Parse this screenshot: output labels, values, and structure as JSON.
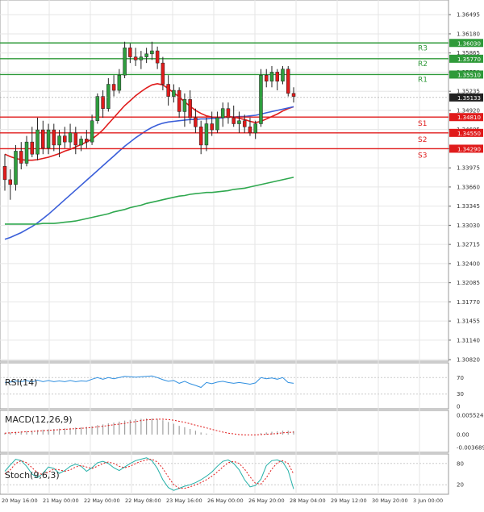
{
  "chart_data": [
    {
      "type": "candlestick",
      "panel": "price",
      "ylim": [
        1.3082,
        1.3671
      ],
      "y_ticks": [
        "1.36495",
        "1.36180",
        "1.35865",
        "1.35550",
        "1.35235",
        "1.34920",
        "1.34605",
        "1.34290",
        "1.33975",
        "1.33660",
        "1.33345",
        "1.33030",
        "1.32715",
        "1.32400",
        "1.32085",
        "1.31770",
        "1.31455",
        "1.31140",
        "1.30820"
      ],
      "x_labels": [
        "20 May 16:00",
        "21 May 00:00",
        "22 May 00:00",
        "22 May 08:00",
        "23 May 16:00",
        "26 May 00:00",
        "26 May 20:00",
        "28 May 04:00",
        "29 May 12:00",
        "30 May 20:00",
        "3 Jun 00:00"
      ],
      "candles": [
        [
          1.34,
          1.342,
          1.336,
          1.3378
        ],
        [
          1.3378,
          1.3395,
          1.3345,
          1.337
        ],
        [
          1.337,
          1.3435,
          1.336,
          1.3425
        ],
        [
          1.3425,
          1.344,
          1.3395,
          1.3405
        ],
        [
          1.3405,
          1.345,
          1.34,
          1.344
        ],
        [
          1.344,
          1.3465,
          1.3415,
          1.342
        ],
        [
          1.342,
          1.348,
          1.341,
          1.346
        ],
        [
          1.346,
          1.3475,
          1.342,
          1.343
        ],
        [
          1.343,
          1.347,
          1.342,
          1.346
        ],
        [
          1.346,
          1.347,
          1.3425,
          1.3435
        ],
        [
          1.3435,
          1.346,
          1.3415,
          1.345
        ],
        [
          1.345,
          1.3465,
          1.343,
          1.344
        ],
        [
          1.344,
          1.347,
          1.343,
          1.3455
        ],
        [
          1.3455,
          1.3465,
          1.342,
          1.3435
        ],
        [
          1.3435,
          1.345,
          1.3425,
          1.3445
        ],
        [
          1.3445,
          1.346,
          1.343,
          1.344
        ],
        [
          1.344,
          1.3485,
          1.3435,
          1.3475
        ],
        [
          1.3475,
          1.352,
          1.347,
          1.3515
        ],
        [
          1.3515,
          1.3525,
          1.348,
          1.3495
        ],
        [
          1.3495,
          1.3545,
          1.349,
          1.3535
        ],
        [
          1.3535,
          1.355,
          1.3515,
          1.3525
        ],
        [
          1.3525,
          1.356,
          1.352,
          1.355
        ],
        [
          1.355,
          1.3605,
          1.3545,
          1.3595
        ],
        [
          1.3595,
          1.3602,
          1.357,
          1.358
        ],
        [
          1.358,
          1.3595,
          1.3565,
          1.3575
        ],
        [
          1.3575,
          1.359,
          1.356,
          1.358
        ],
        [
          1.358,
          1.3595,
          1.357,
          1.3585
        ],
        [
          1.3585,
          1.3605,
          1.3575,
          1.359
        ],
        [
          1.359,
          1.3597,
          1.356,
          1.357
        ],
        [
          1.357,
          1.358,
          1.3525,
          1.3535
        ],
        [
          1.3535,
          1.355,
          1.35,
          1.3515
        ],
        [
          1.3515,
          1.3535,
          1.3505,
          1.3525
        ],
        [
          1.3525,
          1.353,
          1.348,
          1.349
        ],
        [
          1.349,
          1.352,
          1.3465,
          1.351
        ],
        [
          1.351,
          1.3525,
          1.347,
          1.348
        ],
        [
          1.348,
          1.3495,
          1.3455,
          1.3465
        ],
        [
          1.3465,
          1.3475,
          1.342,
          1.3435
        ],
        [
          1.3435,
          1.348,
          1.3425,
          1.347
        ],
        [
          1.347,
          1.349,
          1.345,
          1.346
        ],
        [
          1.346,
          1.349,
          1.3455,
          1.348
        ],
        [
          1.348,
          1.3505,
          1.3465,
          1.3495
        ],
        [
          1.3495,
          1.3505,
          1.347,
          1.348
        ],
        [
          1.348,
          1.35,
          1.3465,
          1.347
        ],
        [
          1.347,
          1.349,
          1.3455,
          1.3475
        ],
        [
          1.3475,
          1.3485,
          1.3455,
          1.3465
        ],
        [
          1.3465,
          1.348,
          1.345,
          1.3455
        ],
        [
          1.3455,
          1.3475,
          1.3445,
          1.347
        ],
        [
          1.347,
          1.356,
          1.3465,
          1.355
        ],
        [
          1.355,
          1.356,
          1.353,
          1.354
        ],
        [
          1.354,
          1.3565,
          1.353,
          1.3555
        ],
        [
          1.3555,
          1.356,
          1.3525,
          1.354
        ],
        [
          1.354,
          1.3565,
          1.3535,
          1.356
        ],
        [
          1.356,
          1.3565,
          1.3515,
          1.352
        ],
        [
          1.352,
          1.353,
          1.3505,
          1.3515
        ]
      ],
      "moving_averages": [
        {
          "color": "#e01b1b",
          "values": [
            1.342,
            1.3416,
            1.3413,
            1.3411,
            1.341,
            1.341,
            1.3411,
            1.3413,
            1.3415,
            1.3418,
            1.3421,
            1.3425,
            1.3428,
            1.3432,
            1.3436,
            1.344,
            1.3445,
            1.3452,
            1.346,
            1.347,
            1.348,
            1.349,
            1.35,
            1.3508,
            1.3516,
            1.3523,
            1.3529,
            1.3534,
            1.3536,
            1.3534,
            1.3528,
            1.3521,
            1.3514,
            1.3506,
            1.3499,
            1.3492,
            1.3487,
            1.3483,
            1.3481,
            1.348,
            1.3481,
            1.3482,
            1.3481,
            1.3479,
            1.3477,
            1.3474,
            1.3472,
            1.3474,
            1.3478,
            1.3482,
            1.3486,
            1.3491,
            1.3495,
            1.3498
          ]
        },
        {
          "color": "#3b5fd9",
          "values": [
            1.328,
            1.3283,
            1.3287,
            1.3291,
            1.3296,
            1.3301,
            1.3307,
            1.3314,
            1.3321,
            1.3329,
            1.3337,
            1.3345,
            1.3353,
            1.3361,
            1.3369,
            1.3377,
            1.3385,
            1.3393,
            1.3401,
            1.3409,
            1.3417,
            1.3425,
            1.3433,
            1.344,
            1.3447,
            1.3453,
            1.3459,
            1.3464,
            1.3468,
            1.3471,
            1.3473,
            1.3474,
            1.3475,
            1.3476,
            1.3477,
            1.3477,
            1.3478,
            1.3478,
            1.3479,
            1.3479,
            1.348,
            1.3481,
            1.3481,
            1.3482,
            1.3482,
            1.3483,
            1.3484,
            1.3486,
            1.3488,
            1.349,
            1.3492,
            1.3494,
            1.3496,
            1.3498
          ]
        },
        {
          "color": "#2fa84f",
          "values": [
            1.3305,
            1.3305,
            1.3305,
            1.3305,
            1.3305,
            1.3305,
            1.3305,
            1.3306,
            1.3306,
            1.3306,
            1.3307,
            1.3308,
            1.3309,
            1.331,
            1.3312,
            1.3314,
            1.3316,
            1.3318,
            1.332,
            1.3322,
            1.3325,
            1.3327,
            1.3329,
            1.3332,
            1.3334,
            1.3336,
            1.3339,
            1.3341,
            1.3343,
            1.3345,
            1.3347,
            1.3349,
            1.3351,
            1.3352,
            1.3354,
            1.3355,
            1.3356,
            1.3357,
            1.3357,
            1.3358,
            1.3359,
            1.336,
            1.3362,
            1.3363,
            1.3364,
            1.3366,
            1.3368,
            1.337,
            1.3372,
            1.3374,
            1.3376,
            1.3378,
            1.338,
            1.3382
          ]
        }
      ],
      "levels": [
        {
          "name": "R3",
          "value": 1.3603,
          "label": "1.36030",
          "color": "#2f9a3a"
        },
        {
          "name": "R2",
          "value": 1.3577,
          "label": "1.35770",
          "color": "#2f9a3a"
        },
        {
          "name": "R1",
          "value": 1.3551,
          "label": "1.35510",
          "color": "#2f9a3a"
        },
        {
          "name": "S1",
          "value": 1.3481,
          "label": "1.34810",
          "color": "#e01b1b"
        },
        {
          "name": "S2",
          "value": 1.3455,
          "label": "1.34550",
          "color": "#e01b1b"
        },
        {
          "name": "S3",
          "value": 1.3429,
          "label": "1.34290",
          "color": "#e01b1b"
        }
      ],
      "current_price": {
        "value": 1.35133,
        "label": "1.35133"
      },
      "colors": {
        "up": "#2e9e3e",
        "down": "#e01b1b",
        "grid": "#e6e6e6"
      }
    },
    {
      "type": "line",
      "panel": "rsi",
      "title": "RSI(14)",
      "ylim": [
        0,
        100
      ],
      "y_ticks": [
        "70",
        "30",
        "0"
      ],
      "series": [
        {
          "color": "#2f8fe0",
          "values": [
            58,
            59,
            62,
            60,
            63,
            59,
            64,
            60,
            63,
            60,
            62,
            60,
            63,
            60,
            62,
            61,
            66,
            70,
            66,
            70,
            67,
            70,
            73,
            72,
            71,
            72,
            73,
            74,
            70,
            65,
            61,
            63,
            56,
            61,
            55,
            51,
            46,
            58,
            55,
            59,
            61,
            58,
            56,
            58,
            56,
            54,
            57,
            70,
            67,
            69,
            66,
            70,
            58,
            56
          ]
        }
      ]
    },
    {
      "type": "bar",
      "panel": "macd",
      "title": "MACD(12,26,9)",
      "y_ticks": [
        "0.005524",
        "0.00",
        "-0.003689"
      ],
      "histogram": [
        0.0005,
        0.0006,
        0.0008,
        0.0009,
        0.001,
        0.0011,
        0.0013,
        0.0014,
        0.0015,
        0.0016,
        0.0017,
        0.0018,
        0.0019,
        0.002,
        0.0021,
        0.0022,
        0.0024,
        0.0027,
        0.0029,
        0.0032,
        0.0034,
        0.0037,
        0.004,
        0.0042,
        0.0044,
        0.0045,
        0.0046,
        0.0046,
        0.0045,
        0.0041,
        0.0036,
        0.0031,
        0.0025,
        0.0021,
        0.0016,
        0.0011,
        0.0006,
        0.0003,
        0.0001,
        0,
        0,
        0,
        0,
        0,
        0,
        0,
        0,
        0.0004,
        0.0006,
        0.0008,
        0.0009,
        0.0011,
        0.0011,
        0.001
      ],
      "signal": [
        0.0004,
        0.0005,
        0.0006,
        0.0007,
        0.0008,
        0.0009,
        0.001,
        0.0011,
        0.0012,
        0.0013,
        0.0014,
        0.0015,
        0.0016,
        0.0017,
        0.0018,
        0.0019,
        0.002,
        0.0022,
        0.0024,
        0.0026,
        0.0028,
        0.003,
        0.0032,
        0.0035,
        0.0037,
        0.004,
        0.0042,
        0.0043,
        0.0044,
        0.0044,
        0.0043,
        0.0041,
        0.0038,
        0.0035,
        0.0031,
        0.0027,
        0.0023,
        0.0019,
        0.0015,
        0.0011,
        0.0007,
        0.0004,
        0.0002,
        0.0,
        -0.0001,
        -0.0001,
        -0.0001,
        0.0,
        0.0001,
        0.0002,
        0.0003,
        0.0005,
        0.0006,
        0.0007
      ],
      "colors": {
        "histogram": "#a0a0a0",
        "signal": "#e01b1b"
      }
    },
    {
      "type": "line",
      "panel": "stoch",
      "title": "Stoch(9,6,3)",
      "ylim": [
        0,
        100
      ],
      "y_ticks": [
        "80",
        "20"
      ],
      "series": [
        {
          "color": "#23b0a8",
          "values": [
            58,
            76,
            92,
            88,
            72,
            50,
            40,
            52,
            70,
            66,
            52,
            60,
            72,
            78,
            72,
            58,
            68,
            82,
            86,
            80,
            68,
            60,
            70,
            80,
            88,
            92,
            96,
            88,
            66,
            34,
            12,
            4,
            10,
            16,
            20,
            26,
            34,
            44,
            56,
            72,
            86,
            90,
            80,
            62,
            34,
            14,
            18,
            36,
            74,
            88,
            90,
            84,
            60,
            8
          ]
        },
        {
          "color": "#e01b1b",
          "values": [
            50,
            62,
            80,
            88,
            82,
            68,
            54,
            48,
            56,
            64,
            62,
            58,
            62,
            70,
            74,
            70,
            66,
            72,
            80,
            84,
            80,
            72,
            68,
            72,
            80,
            86,
            90,
            92,
            84,
            66,
            42,
            20,
            10,
            10,
            14,
            20,
            26,
            34,
            44,
            56,
            70,
            82,
            86,
            80,
            64,
            42,
            24,
            22,
            40,
            64,
            82,
            88,
            80,
            50
          ]
        }
      ]
    }
  ]
}
